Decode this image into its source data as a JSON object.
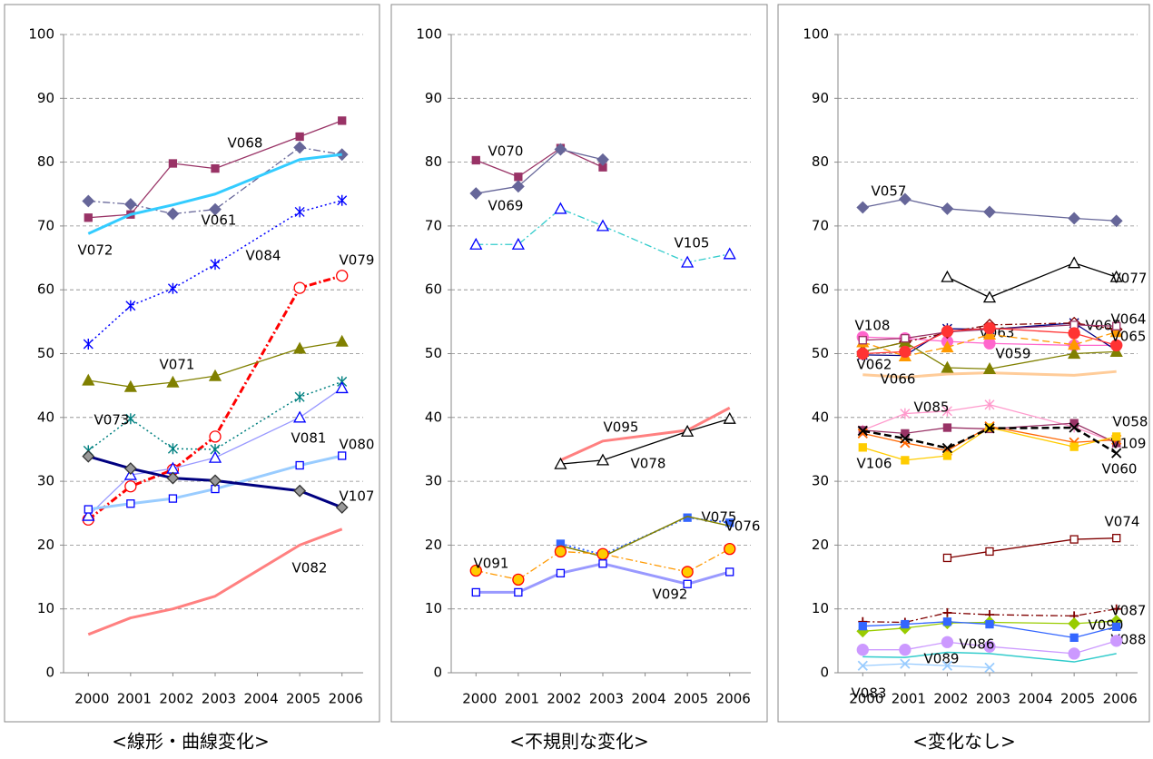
{
  "chart_data": [
    {
      "type": "line",
      "title": "<線形・曲線変化>",
      "x": [
        2000,
        2001,
        2002,
        2003,
        2005,
        2006
      ],
      "xticks": [
        2000,
        2001,
        2002,
        2003,
        2004,
        2005,
        2006
      ],
      "xlim": [
        1999.5,
        2006.5
      ],
      "ylim": [
        0,
        100
      ],
      "yticks": [
        0,
        10,
        20,
        30,
        40,
        50,
        60,
        70,
        80,
        90,
        100
      ],
      "grid": true,
      "series": [
        {
          "name": "V068",
          "color": "#993366",
          "marker": "square",
          "marker_fill": "#993366",
          "width": 1.3,
          "values": [
            71.3,
            71.8,
            79.8,
            79,
            84,
            86.5
          ]
        },
        {
          "name": "V061",
          "color": "#666699",
          "marker": "diamond",
          "marker_fill": "#666699",
          "dash": "dashdot",
          "width": 1.3,
          "values": [
            73.9,
            73.4,
            71.9,
            72.6,
            82.3,
            81.2
          ]
        },
        {
          "name": "V072",
          "color": "#33ccff",
          "marker": "none",
          "width": 3,
          "values": [
            68.8,
            71.8,
            73.3,
            75,
            80.4,
            81.2
          ]
        },
        {
          "name": "V084",
          "color": "#0000ff",
          "marker": "star",
          "marker_fill": "#0000ff",
          "dash": "dot",
          "width": 1.5,
          "values": [
            51.5,
            57.5,
            60.2,
            64,
            72.2,
            74
          ]
        },
        {
          "name": "V079",
          "color": "#ff0000",
          "marker": "circle",
          "marker_fill": "#ffffff",
          "dash": "dashdot",
          "width": 3,
          "values": [
            24,
            29.2,
            31.8,
            37,
            60.3,
            62.2
          ]
        },
        {
          "name": "V071",
          "color": "#808000",
          "marker": "triangle",
          "marker_fill": "#808000",
          "width": 1.3,
          "values": [
            45.8,
            44.8,
            45.5,
            46.5,
            50.8,
            51.9
          ]
        },
        {
          "name": "V073",
          "color": "#008080",
          "marker": "star",
          "marker_fill": "#008080",
          "dash": "dot",
          "width": 1.5,
          "values": [
            34.8,
            39.8,
            35.1,
            35,
            43.2,
            45.6
          ]
        },
        {
          "name": "V081",
          "color": "#9999ff",
          "marker": "triangle",
          "marker_fill": "#ffffff",
          "marker_color": "#0000ff",
          "width": 1.3,
          "values": [
            24.6,
            31,
            32,
            33.7,
            40,
            44.6
          ]
        },
        {
          "name": "V080",
          "color": "#99ccff",
          "marker": "square",
          "marker_fill": "#ffffff",
          "marker_color": "#0000ff",
          "width": 3,
          "values": [
            25.6,
            26.5,
            27.3,
            28.8,
            32.5,
            34
          ]
        },
        {
          "name": "V107",
          "color": "#000080",
          "marker": "diamond",
          "marker_fill": "#999999",
          "marker_color": "#333333",
          "width": 3,
          "values": [
            33.9,
            32,
            30.5,
            30.1,
            28.5,
            25.9
          ]
        },
        {
          "name": "V082",
          "color": "#ff8080",
          "marker": "none",
          "width": 3,
          "values": [
            6,
            8.6,
            10,
            12,
            20,
            22.5
          ]
        }
      ]
    },
    {
      "type": "line",
      "title": "<不規則な変化>",
      "x": [
        2000,
        2001,
        2002,
        2003,
        2005,
        2006
      ],
      "xticks": [
        2000,
        2001,
        2002,
        2003,
        2004,
        2005,
        2006
      ],
      "xlim": [
        1999.5,
        2006.5
      ],
      "ylim": [
        0,
        100
      ],
      "yticks": [
        0,
        10,
        20,
        30,
        40,
        50,
        60,
        70,
        80,
        90,
        100
      ],
      "grid": true,
      "series": [
        {
          "name": "V070",
          "color": "#993366",
          "marker": "square",
          "marker_fill": "#993366",
          "width": 1.3,
          "values": [
            80.3,
            77.7,
            82.2,
            79.2,
            null,
            null
          ]
        },
        {
          "name": "V069",
          "color": "#666699",
          "marker": "diamond",
          "marker_fill": "#666699",
          "width": 1.3,
          "values": [
            75.1,
            76.2,
            82,
            80.4,
            null,
            null
          ]
        },
        {
          "name": "V105",
          "color": "#33cccc",
          "marker": "triangle",
          "marker_fill": "#ffffff",
          "marker_color": "#0000ff",
          "dash": "dashdot",
          "width": 1.3,
          "values": [
            67.1,
            67.1,
            72.7,
            70,
            64.3,
            65.6
          ]
        },
        {
          "name": "V095",
          "color": "#ff8080",
          "marker": "none",
          "width": 3,
          "values": [
            null,
            null,
            33.3,
            36.3,
            38,
            41.5
          ]
        },
        {
          "name": "V078",
          "color": "#000000",
          "marker": "triangle",
          "marker_fill": "#ffffff",
          "width": 1.3,
          "values": [
            null,
            null,
            32.7,
            33.3,
            37.8,
            39.8
          ]
        },
        {
          "name": "V075",
          "color": "#3366ff",
          "marker": "square",
          "marker_fill": "#3366ff",
          "dash": "dot",
          "width": 2,
          "values": [
            null,
            null,
            20.2,
            18.5,
            24.3,
            23.5
          ]
        },
        {
          "name": "V076",
          "color": "#808000",
          "marker": "none",
          "width": 1.5,
          "values": [
            null,
            null,
            19.9,
            18.2,
            24.5,
            23
          ]
        },
        {
          "name": "V091",
          "color": "#ff9900",
          "marker": "circle",
          "marker_fill": "#ffcc00",
          "marker_color": "#ff0000",
          "dash": "dashdot",
          "width": 1.3,
          "values": [
            16,
            14.6,
            19,
            18.6,
            15.8,
            19.4
          ]
        },
        {
          "name": "V092",
          "color": "#9999ff",
          "marker": "square",
          "marker_fill": "#ffffff",
          "marker_color": "#0000ff",
          "width": 3,
          "values": [
            12.6,
            12.6,
            15.6,
            17.1,
            13.9,
            15.8
          ]
        }
      ]
    },
    {
      "type": "line",
      "title": "<変化なし>",
      "x": [
        2000,
        2001,
        2002,
        2003,
        2005,
        2006
      ],
      "xticks": [
        2000,
        2001,
        2002,
        2003,
        2004,
        2005,
        2006
      ],
      "xlim": [
        1999.5,
        2006.5
      ],
      "ylim": [
        0,
        100
      ],
      "yticks": [
        0,
        10,
        20,
        30,
        40,
        50,
        60,
        70,
        80,
        90,
        100
      ],
      "grid": true,
      "series": [
        {
          "name": "V057",
          "color": "#666699",
          "marker": "diamond",
          "marker_fill": "#666699",
          "width": 1.3,
          "values": [
            72.9,
            74.2,
            72.7,
            72.2,
            71.2,
            70.8
          ]
        },
        {
          "name": "V077",
          "color": "#000000",
          "marker": "triangle",
          "marker_fill": "#ffffff",
          "width": 1.3,
          "values": [
            null,
            null,
            62,
            58.8,
            64.2,
            62
          ]
        },
        {
          "name": "V108",
          "color": "#ff66cc",
          "marker": "circle",
          "marker_fill": "#ff66cc",
          "width": 1.3,
          "values": [
            52.6,
            52.4,
            51.9,
            51.6,
            51.3,
            51.3
          ]
        },
        {
          "name": "V062",
          "color": "#000080",
          "marker": "star",
          "marker_fill": "#000080",
          "width": 1.3,
          "values": [
            49.8,
            49.7,
            53.9,
            53.8,
            54.8,
            50.5
          ]
        },
        {
          "name": "V066",
          "color": "#ffcc99",
          "marker": "none",
          "width": 3,
          "values": [
            46.7,
            46.3,
            46.8,
            47,
            46.6,
            47.2
          ]
        },
        {
          "name": "V063",
          "color": "#800000",
          "marker": "diamond",
          "marker_fill": "#ffffff",
          "dash": "dashdot",
          "width": 1.3,
          "values": [
            50.3,
            51.8,
            53.3,
            54.5,
            54.8,
            53.8
          ]
        },
        {
          "name": "V059",
          "color": "#808000",
          "marker": "triangle",
          "marker_fill": "#808000",
          "width": 1.3,
          "values": [
            50.3,
            51.8,
            47.8,
            47.6,
            50,
            50.3
          ]
        },
        {
          "name": "V067",
          "color": "#ff9900",
          "marker": "triangle",
          "marker_fill": "#ff9900",
          "dash": "dash",
          "width": 1.3,
          "values": [
            51.8,
            49.6,
            51,
            53,
            51.4,
            53.4
          ]
        },
        {
          "name": "V064",
          "color": "#993366",
          "marker": "square",
          "marker_fill": "#ffffff",
          "width": 1.3,
          "values": [
            52.1,
            52.4,
            53.4,
            53.8,
            54.5,
            54.3
          ]
        },
        {
          "name": "V065",
          "color": "#ff3333",
          "marker": "circle",
          "marker_fill": "#ff3333",
          "width": 1.3,
          "values": [
            50,
            50.3,
            53.5,
            54,
            53.2,
            51.3
          ]
        },
        {
          "name": "V085",
          "color": "#ff99cc",
          "marker": "star",
          "marker_fill": "#ff99cc",
          "width": 1.3,
          "values": [
            38,
            40.6,
            41,
            42,
            38.5,
            36
          ]
        },
        {
          "name": "V058",
          "color": "#993366",
          "marker": "square",
          "marker_fill": "#993366",
          "width": 1.3,
          "values": [
            38,
            37.5,
            38.4,
            38.2,
            39.1,
            36
          ]
        },
        {
          "name": "V109",
          "color": "#ff6600",
          "marker": "x",
          "marker_fill": "#ff6600",
          "width": 1.3,
          "values": [
            37.5,
            36,
            34.8,
            38.6,
            36.1,
            36.5
          ]
        },
        {
          "name": "V106",
          "color": "#ffcc00",
          "marker": "square",
          "marker_fill": "#ffcc00",
          "width": 1.3,
          "values": [
            35.3,
            33.3,
            34,
            38.4,
            35.4,
            37
          ]
        },
        {
          "name": "V060",
          "color": "#000000",
          "marker": "x",
          "marker_fill": "#000000",
          "dash": "dash",
          "width": 2.5,
          "values": [
            37.9,
            36.7,
            35.2,
            38.3,
            38.4,
            34.4
          ]
        },
        {
          "name": "V074",
          "color": "#800000",
          "marker": "square",
          "marker_fill": "#ffffff",
          "width": 1.3,
          "values": [
            null,
            null,
            18,
            19,
            20.9,
            21.1
          ]
        },
        {
          "name": "V087",
          "color": "#800000",
          "marker": "plus",
          "marker_fill": "#800000",
          "dash": "dashdot",
          "width": 1.3,
          "values": [
            8,
            7.9,
            9.4,
            9.1,
            8.9,
            10
          ]
        },
        {
          "name": "V090",
          "color": "#99cc00",
          "marker": "diamond",
          "marker_fill": "#99cc00",
          "width": 1.3,
          "values": [
            6.5,
            7,
            7.8,
            7.9,
            7.7,
            8.1
          ]
        },
        {
          "name": "V088",
          "color": "#3366ff",
          "marker": "square",
          "marker_fill": "#3366ff",
          "width": 1.3,
          "values": [
            7.3,
            7.6,
            8,
            7.6,
            5.5,
            7.2
          ]
        },
        {
          "name": "V086",
          "color": "#cc99ff",
          "marker": "circle",
          "marker_fill": "#cc99ff",
          "width": 1.3,
          "values": [
            3.6,
            3.6,
            4.8,
            4.1,
            3,
            5
          ]
        },
        {
          "name": "V089",
          "color": "#33cccc",
          "marker": "none",
          "width": 1.5,
          "values": [
            2.5,
            2.4,
            3.2,
            3,
            1.7,
            3
          ]
        },
        {
          "name": "V083",
          "color": "#99ccff",
          "marker": "x",
          "marker_fill": "#99ccff",
          "width": 1.3,
          "values": [
            1.1,
            1.4,
            1.1,
            0.8,
            null,
            null
          ]
        }
      ]
    }
  ]
}
